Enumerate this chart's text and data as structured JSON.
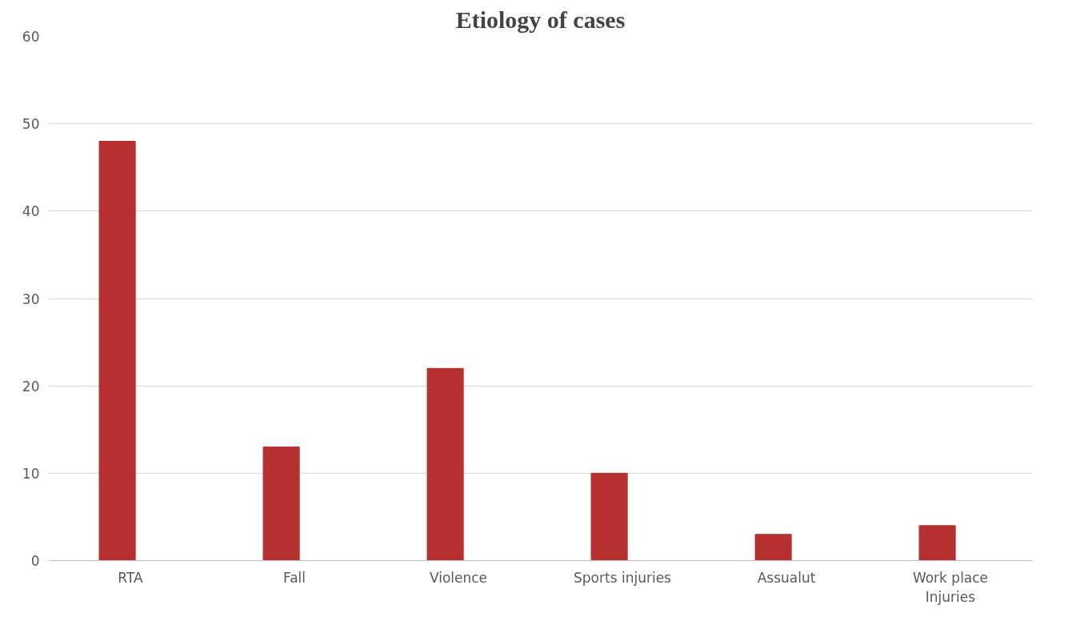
{
  "chart_data": {
    "type": "bar",
    "title": "Etiology of cases",
    "categories": [
      "RTA",
      "Fall",
      "Violence",
      "Sports injuries",
      "Assualut",
      "Work place Injuries"
    ],
    "values": [
      48,
      13,
      22,
      10,
      3,
      4
    ],
    "color": "#b5302f",
    "ylim": [
      0,
      60
    ],
    "yticks": [
      0,
      10,
      20,
      30,
      40,
      50,
      60
    ],
    "grid": "y"
  }
}
